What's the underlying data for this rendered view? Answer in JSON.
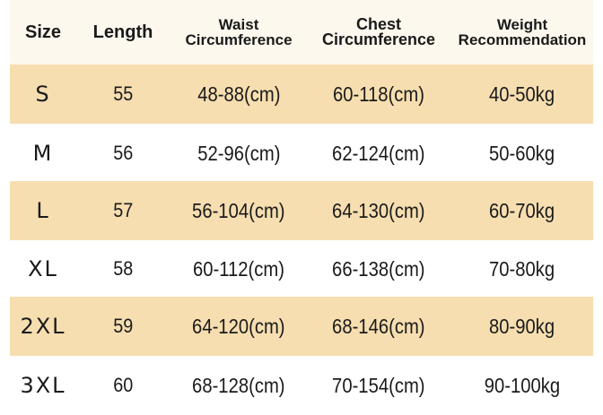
{
  "headers": {
    "size": "Size",
    "length": "Length",
    "waist_1": "Waist",
    "waist_2": "Circumference",
    "chest_1": "Chest",
    "chest_2": "Circumference",
    "weight_1": "Weight",
    "weight_2": "Recommendation"
  },
  "rows": [
    {
      "size": "S",
      "length": "55",
      "waist": "48-88(cm)",
      "chest": "60-118(cm)",
      "weight": "40-50kg"
    },
    {
      "size": "M",
      "length": "56",
      "waist": "52-96(cm)",
      "chest": "62-124(cm)",
      "weight": "50-60kg"
    },
    {
      "size": "L",
      "length": "57",
      "waist": "56-104(cm)",
      "chest": "64-130(cm)",
      "weight": "60-70kg"
    },
    {
      "size": "XL",
      "length": "58",
      "waist": "60-112(cm)",
      "chest": "66-138(cm)",
      "weight": "70-80kg"
    },
    {
      "size": "2XL",
      "length": "59",
      "waist": "64-120(cm)",
      "chest": "68-146(cm)",
      "weight": "80-90kg"
    },
    {
      "size": "3XL",
      "length": "60",
      "waist": "68-128(cm)",
      "chest": "70-154(cm)",
      "weight": "90-100kg"
    }
  ],
  "colors": {
    "shaded_row": "#f6deb0",
    "header_bg": "#fdf8ee",
    "text": "#1a1a1a"
  }
}
